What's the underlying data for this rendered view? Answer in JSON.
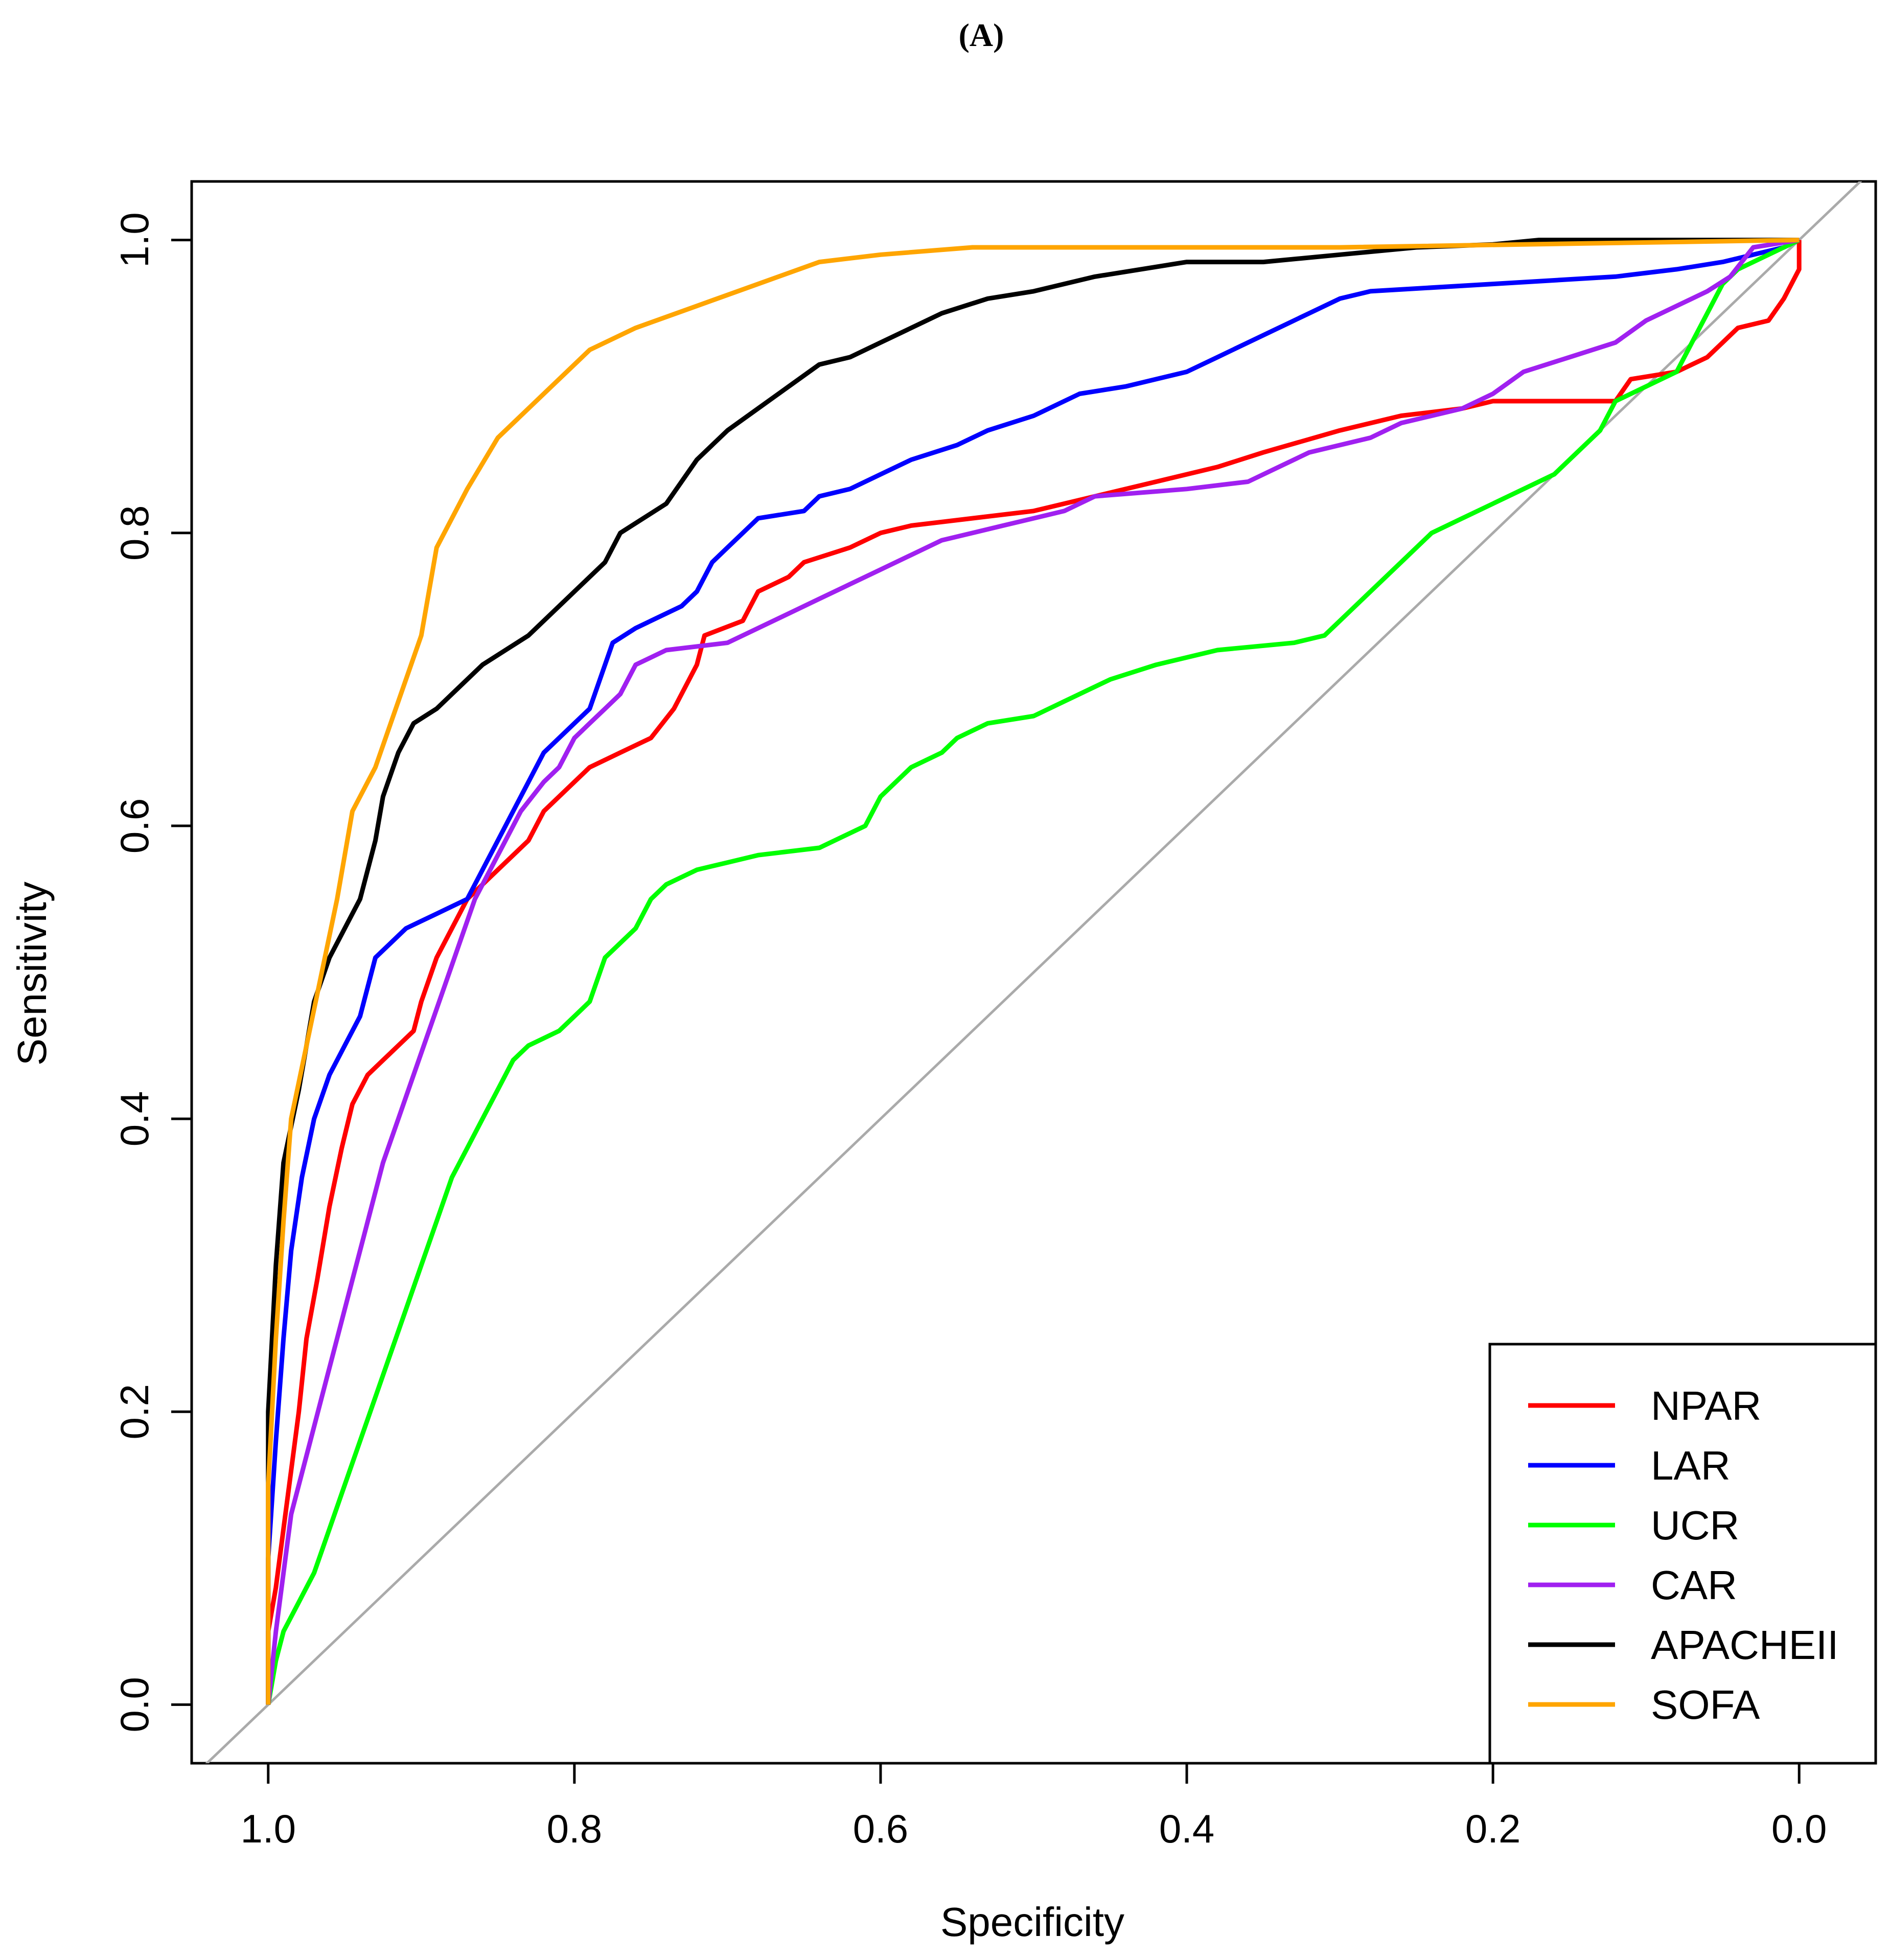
{
  "panel_label": "(A)",
  "chart_data": {
    "type": "line",
    "title": "(A)",
    "xlabel": "Specificity",
    "ylabel": "Sensitivity",
    "x_reversed": true,
    "xlim": [
      1.05,
      -0.05
    ],
    "ylim": [
      -0.04,
      1.04
    ],
    "xticks": [
      1.0,
      0.8,
      0.6,
      0.4,
      0.2,
      0.0
    ],
    "xtick_labels": [
      "1.0",
      "0.8",
      "0.6",
      "0.4",
      "0.2",
      "0.0"
    ],
    "yticks": [
      0.0,
      0.2,
      0.4,
      0.6,
      0.8,
      1.0
    ],
    "ytick_labels": [
      "0.0",
      "0.2",
      "0.4",
      "0.6",
      "0.8",
      "1.0"
    ],
    "reference_line": {
      "color": "#aaaaaa",
      "from": [
        1.0,
        0.0
      ],
      "to": [
        0.0,
        1.0
      ]
    },
    "legend_position": "bottom-right",
    "series": [
      {
        "name": "NPAR",
        "color": "#ff0000",
        "points": [
          [
            1.0,
            0.0
          ],
          [
            1.0,
            0.05
          ],
          [
            0.995,
            0.08
          ],
          [
            0.99,
            0.12
          ],
          [
            0.985,
            0.16
          ],
          [
            0.98,
            0.2
          ],
          [
            0.975,
            0.25
          ],
          [
            0.968,
            0.29
          ],
          [
            0.96,
            0.34
          ],
          [
            0.952,
            0.38
          ],
          [
            0.945,
            0.41
          ],
          [
            0.935,
            0.43
          ],
          [
            0.925,
            0.44
          ],
          [
            0.915,
            0.45
          ],
          [
            0.905,
            0.46
          ],
          [
            0.9,
            0.48
          ],
          [
            0.89,
            0.51
          ],
          [
            0.88,
            0.53
          ],
          [
            0.87,
            0.55
          ],
          [
            0.86,
            0.56
          ],
          [
            0.85,
            0.57
          ],
          [
            0.83,
            0.59
          ],
          [
            0.82,
            0.61
          ],
          [
            0.81,
            0.62
          ],
          [
            0.79,
            0.64
          ],
          [
            0.77,
            0.65
          ],
          [
            0.75,
            0.66
          ],
          [
            0.735,
            0.68
          ],
          [
            0.72,
            0.71
          ],
          [
            0.715,
            0.73
          ],
          [
            0.69,
            0.74
          ],
          [
            0.68,
            0.76
          ],
          [
            0.66,
            0.77
          ],
          [
            0.65,
            0.78
          ],
          [
            0.62,
            0.79
          ],
          [
            0.6,
            0.8
          ],
          [
            0.58,
            0.805
          ],
          [
            0.5,
            0.815
          ],
          [
            0.46,
            0.825
          ],
          [
            0.42,
            0.835
          ],
          [
            0.38,
            0.845
          ],
          [
            0.35,
            0.855
          ],
          [
            0.3,
            0.87
          ],
          [
            0.26,
            0.88
          ],
          [
            0.22,
            0.885
          ],
          [
            0.2,
            0.89
          ],
          [
            0.12,
            0.89
          ],
          [
            0.11,
            0.905
          ],
          [
            0.08,
            0.91
          ],
          [
            0.06,
            0.92
          ],
          [
            0.05,
            0.93
          ],
          [
            0.04,
            0.94
          ],
          [
            0.02,
            0.945
          ],
          [
            0.01,
            0.96
          ],
          [
            0.0,
            0.98
          ],
          [
            0.0,
            1.0
          ]
        ]
      },
      {
        "name": "LAR",
        "color": "#0000ff",
        "points": [
          [
            1.0,
            0.0
          ],
          [
            1.0,
            0.1
          ],
          [
            0.995,
            0.18
          ],
          [
            0.99,
            0.25
          ],
          [
            0.985,
            0.31
          ],
          [
            0.978,
            0.36
          ],
          [
            0.97,
            0.4
          ],
          [
            0.96,
            0.43
          ],
          [
            0.95,
            0.45
          ],
          [
            0.94,
            0.47
          ],
          [
            0.935,
            0.49
          ],
          [
            0.93,
            0.51
          ],
          [
            0.92,
            0.52
          ],
          [
            0.91,
            0.53
          ],
          [
            0.9,
            0.535
          ],
          [
            0.89,
            0.54
          ],
          [
            0.87,
            0.55
          ],
          [
            0.86,
            0.57
          ],
          [
            0.85,
            0.59
          ],
          [
            0.84,
            0.61
          ],
          [
            0.83,
            0.63
          ],
          [
            0.82,
            0.65
          ],
          [
            0.81,
            0.66
          ],
          [
            0.8,
            0.67
          ],
          [
            0.79,
            0.68
          ],
          [
            0.78,
            0.71
          ],
          [
            0.775,
            0.725
          ],
          [
            0.76,
            0.735
          ],
          [
            0.75,
            0.74
          ],
          [
            0.73,
            0.75
          ],
          [
            0.72,
            0.76
          ],
          [
            0.71,
            0.78
          ],
          [
            0.7,
            0.79
          ],
          [
            0.69,
            0.8
          ],
          [
            0.68,
            0.81
          ],
          [
            0.65,
            0.815
          ],
          [
            0.64,
            0.825
          ],
          [
            0.62,
            0.83
          ],
          [
            0.6,
            0.84
          ],
          [
            0.58,
            0.85
          ],
          [
            0.55,
            0.86
          ],
          [
            0.53,
            0.87
          ],
          [
            0.5,
            0.88
          ],
          [
            0.47,
            0.895
          ],
          [
            0.44,
            0.9
          ],
          [
            0.4,
            0.91
          ],
          [
            0.38,
            0.92
          ],
          [
            0.36,
            0.93
          ],
          [
            0.34,
            0.94
          ],
          [
            0.32,
            0.95
          ],
          [
            0.3,
            0.96
          ],
          [
            0.28,
            0.965
          ],
          [
            0.2,
            0.97
          ],
          [
            0.12,
            0.975
          ],
          [
            0.08,
            0.98
          ],
          [
            0.05,
            0.985
          ],
          [
            0.03,
            0.99
          ],
          [
            0.01,
            0.995
          ],
          [
            0.0,
            1.0
          ]
        ]
      },
      {
        "name": "UCR",
        "color": "#00ff00",
        "points": [
          [
            1.0,
            0.0
          ],
          [
            0.995,
            0.03
          ],
          [
            0.99,
            0.05
          ],
          [
            0.98,
            0.07
          ],
          [
            0.97,
            0.09
          ],
          [
            0.96,
            0.12
          ],
          [
            0.95,
            0.15
          ],
          [
            0.94,
            0.18
          ],
          [
            0.93,
            0.21
          ],
          [
            0.92,
            0.24
          ],
          [
            0.91,
            0.27
          ],
          [
            0.9,
            0.3
          ],
          [
            0.89,
            0.33
          ],
          [
            0.88,
            0.36
          ],
          [
            0.87,
            0.38
          ],
          [
            0.86,
            0.4
          ],
          [
            0.85,
            0.42
          ],
          [
            0.84,
            0.44
          ],
          [
            0.83,
            0.45
          ],
          [
            0.81,
            0.46
          ],
          [
            0.8,
            0.47
          ],
          [
            0.79,
            0.48
          ],
          [
            0.78,
            0.51
          ],
          [
            0.76,
            0.53
          ],
          [
            0.75,
            0.55
          ],
          [
            0.74,
            0.56
          ],
          [
            0.72,
            0.57
          ],
          [
            0.7,
            0.575
          ],
          [
            0.68,
            0.58
          ],
          [
            0.64,
            0.585
          ],
          [
            0.61,
            0.6
          ],
          [
            0.6,
            0.62
          ],
          [
            0.58,
            0.64
          ],
          [
            0.56,
            0.65
          ],
          [
            0.55,
            0.66
          ],
          [
            0.53,
            0.67
          ],
          [
            0.5,
            0.675
          ],
          [
            0.48,
            0.685
          ],
          [
            0.45,
            0.7
          ],
          [
            0.42,
            0.71
          ],
          [
            0.38,
            0.72
          ],
          [
            0.33,
            0.725
          ],
          [
            0.31,
            0.73
          ],
          [
            0.3,
            0.74
          ],
          [
            0.28,
            0.76
          ],
          [
            0.26,
            0.78
          ],
          [
            0.24,
            0.8
          ],
          [
            0.22,
            0.81
          ],
          [
            0.2,
            0.82
          ],
          [
            0.18,
            0.83
          ],
          [
            0.16,
            0.84
          ],
          [
            0.15,
            0.85
          ],
          [
            0.13,
            0.87
          ],
          [
            0.12,
            0.89
          ],
          [
            0.1,
            0.9
          ],
          [
            0.08,
            0.91
          ],
          [
            0.07,
            0.93
          ],
          [
            0.06,
            0.95
          ],
          [
            0.05,
            0.97
          ],
          [
            0.04,
            0.98
          ],
          [
            0.02,
            0.99
          ],
          [
            0.0,
            1.0
          ]
        ]
      },
      {
        "name": "CAR",
        "color": "#a020f0",
        "points": [
          [
            1.0,
            0.0
          ],
          [
            0.995,
            0.05
          ],
          [
            0.99,
            0.09
          ],
          [
            0.985,
            0.13
          ],
          [
            0.975,
            0.17
          ],
          [
            0.965,
            0.21
          ],
          [
            0.955,
            0.25
          ],
          [
            0.945,
            0.29
          ],
          [
            0.935,
            0.33
          ],
          [
            0.925,
            0.37
          ],
          [
            0.915,
            0.4
          ],
          [
            0.905,
            0.43
          ],
          [
            0.895,
            0.46
          ],
          [
            0.885,
            0.49
          ],
          [
            0.875,
            0.52
          ],
          [
            0.865,
            0.55
          ],
          [
            0.855,
            0.57
          ],
          [
            0.845,
            0.59
          ],
          [
            0.835,
            0.61
          ],
          [
            0.82,
            0.63
          ],
          [
            0.81,
            0.64
          ],
          [
            0.8,
            0.66
          ],
          [
            0.79,
            0.67
          ],
          [
            0.78,
            0.68
          ],
          [
            0.77,
            0.69
          ],
          [
            0.76,
            0.71
          ],
          [
            0.74,
            0.72
          ],
          [
            0.7,
            0.725
          ],
          [
            0.68,
            0.735
          ],
          [
            0.66,
            0.745
          ],
          [
            0.64,
            0.755
          ],
          [
            0.62,
            0.765
          ],
          [
            0.6,
            0.775
          ],
          [
            0.58,
            0.785
          ],
          [
            0.56,
            0.795
          ],
          [
            0.52,
            0.805
          ],
          [
            0.48,
            0.815
          ],
          [
            0.46,
            0.825
          ],
          [
            0.4,
            0.83
          ],
          [
            0.36,
            0.835
          ],
          [
            0.34,
            0.845
          ],
          [
            0.32,
            0.855
          ],
          [
            0.28,
            0.865
          ],
          [
            0.26,
            0.875
          ],
          [
            0.22,
            0.885
          ],
          [
            0.2,
            0.895
          ],
          [
            0.18,
            0.91
          ],
          [
            0.15,
            0.92
          ],
          [
            0.12,
            0.93
          ],
          [
            0.1,
            0.945
          ],
          [
            0.08,
            0.955
          ],
          [
            0.06,
            0.965
          ],
          [
            0.045,
            0.975
          ],
          [
            0.03,
            0.995
          ],
          [
            0.0,
            1.0
          ]
        ]
      },
      {
        "name": "APACHEII",
        "color": "#000000",
        "points": [
          [
            1.0,
            0.0
          ],
          [
            1.0,
            0.2
          ],
          [
            0.995,
            0.3
          ],
          [
            0.99,
            0.37
          ],
          [
            0.98,
            0.42
          ],
          [
            0.975,
            0.45
          ],
          [
            0.97,
            0.48
          ],
          [
            0.96,
            0.51
          ],
          [
            0.95,
            0.53
          ],
          [
            0.94,
            0.55
          ],
          [
            0.93,
            0.59
          ],
          [
            0.925,
            0.62
          ],
          [
            0.915,
            0.65
          ],
          [
            0.905,
            0.67
          ],
          [
            0.89,
            0.68
          ],
          [
            0.86,
            0.71
          ],
          [
            0.83,
            0.73
          ],
          [
            0.8,
            0.76
          ],
          [
            0.78,
            0.78
          ],
          [
            0.77,
            0.8
          ],
          [
            0.74,
            0.82
          ],
          [
            0.72,
            0.85
          ],
          [
            0.7,
            0.87
          ],
          [
            0.68,
            0.885
          ],
          [
            0.66,
            0.9
          ],
          [
            0.64,
            0.915
          ],
          [
            0.62,
            0.92
          ],
          [
            0.6,
            0.93
          ],
          [
            0.58,
            0.94
          ],
          [
            0.56,
            0.95
          ],
          [
            0.53,
            0.96
          ],
          [
            0.5,
            0.965
          ],
          [
            0.46,
            0.975
          ],
          [
            0.4,
            0.985
          ],
          [
            0.35,
            0.985
          ],
          [
            0.3,
            0.99
          ],
          [
            0.25,
            0.995
          ],
          [
            0.2,
            0.997
          ],
          [
            0.17,
            1.0
          ],
          [
            0.0,
            1.0
          ]
        ]
      },
      {
        "name": "SOFA",
        "color": "#ffa500",
        "points": [
          [
            1.0,
            0.0
          ],
          [
            1.0,
            0.15
          ],
          [
            0.995,
            0.25
          ],
          [
            0.99,
            0.33
          ],
          [
            0.985,
            0.4
          ],
          [
            0.975,
            0.45
          ],
          [
            0.965,
            0.5
          ],
          [
            0.955,
            0.55
          ],
          [
            0.945,
            0.61
          ],
          [
            0.93,
            0.64
          ],
          [
            0.92,
            0.67
          ],
          [
            0.9,
            0.73
          ],
          [
            0.89,
            0.79
          ],
          [
            0.87,
            0.83
          ],
          [
            0.85,
            0.865
          ],
          [
            0.82,
            0.895
          ],
          [
            0.79,
            0.925
          ],
          [
            0.76,
            0.94
          ],
          [
            0.72,
            0.955
          ],
          [
            0.68,
            0.97
          ],
          [
            0.64,
            0.985
          ],
          [
            0.6,
            0.99
          ],
          [
            0.54,
            0.995
          ],
          [
            0.3,
            0.995
          ],
          [
            0.0,
            1.0
          ]
        ]
      }
    ]
  }
}
